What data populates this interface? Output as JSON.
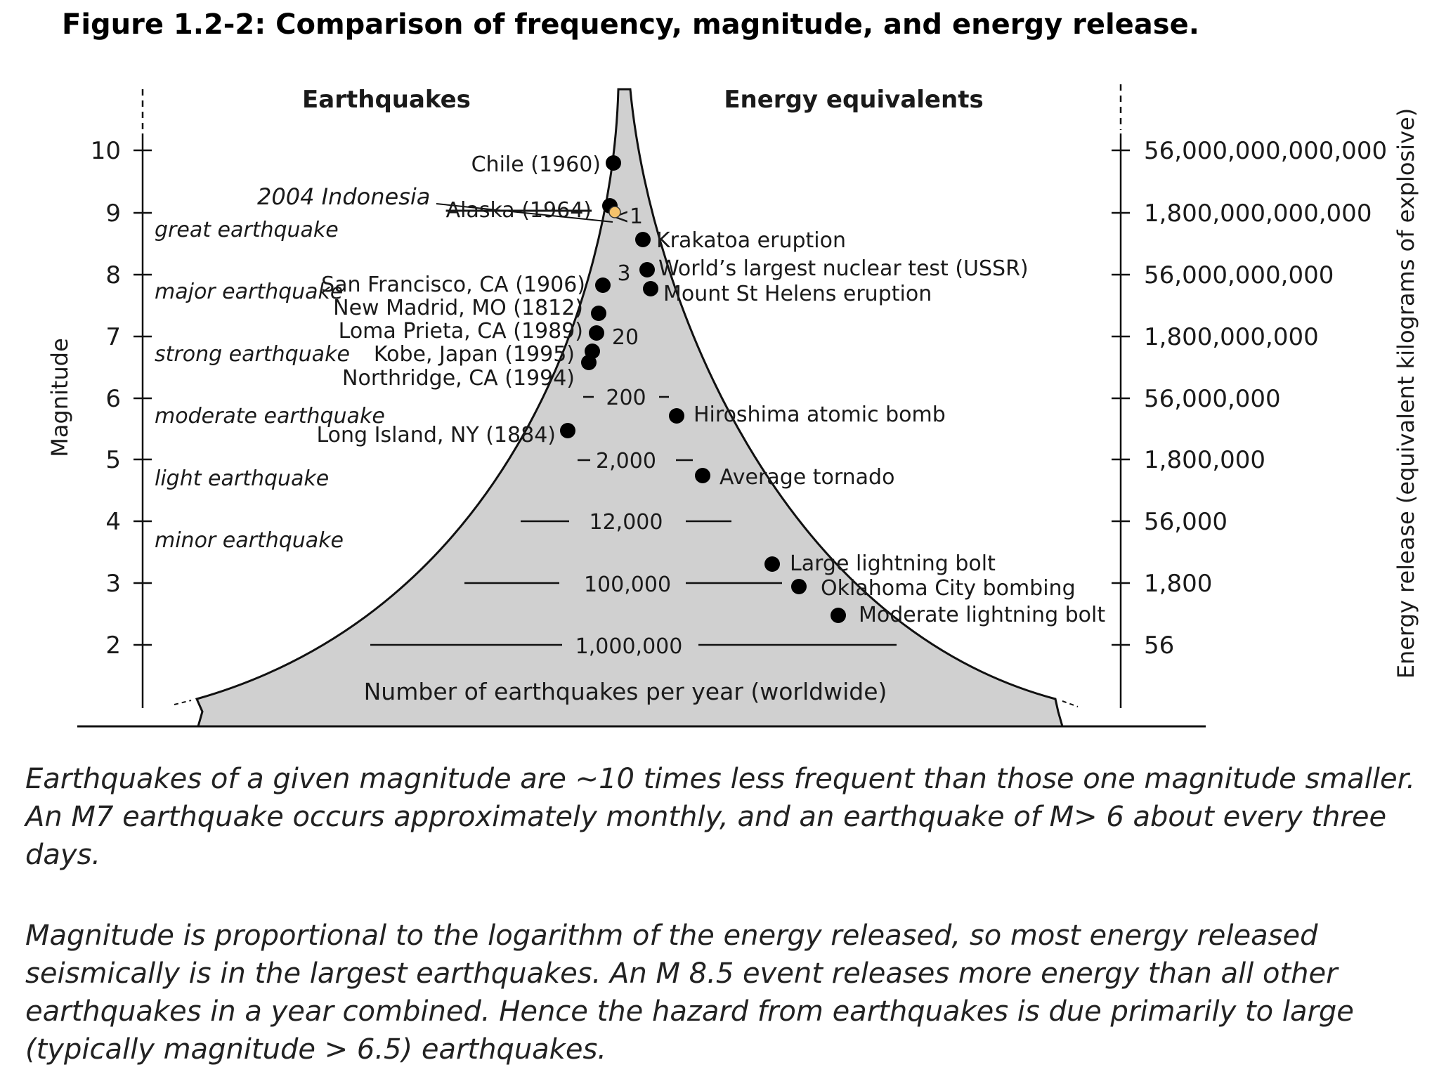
{
  "title": "Figure 1.2-2: Comparison of frequency, magnitude, and energy release.",
  "headers": {
    "left": "Earthquakes",
    "right": "Energy equivalents"
  },
  "axes": {
    "left_label": "Magnitude",
    "right_label": "Energy release (equivalent kilograms of explosive)",
    "bottom_label": "Number of earthquakes per year (worldwide)",
    "magnitude_ticks": [
      "10",
      "9",
      "8",
      "7",
      "6",
      "5",
      "4",
      "3",
      "2"
    ],
    "energy_ticks": [
      "56,000,000,000,000",
      "1,800,000,000,000",
      "56,000,000,000",
      "1,800,000,000",
      "56,000,000",
      "1,800,000",
      "56,000",
      "1,800",
      "56"
    ]
  },
  "categories": [
    "great earthquake",
    "major earthquake",
    "strong earthquake",
    "moderate earthquake",
    "light earthquake",
    "minor earthquake"
  ],
  "frequency_labels": [
    "<1",
    "3",
    "20",
    "200",
    "2,000",
    "12,000",
    "100,000",
    "1,000,000"
  ],
  "earthquakes": [
    {
      "name": "Chile (1960)",
      "magnitude": 9.5
    },
    {
      "name": "Alaska (1964)",
      "magnitude": 9.2
    },
    {
      "name": "San Francisco, CA (1906)",
      "magnitude": 7.8
    },
    {
      "name": "New Madrid, MO (1812)",
      "magnitude": 7.4
    },
    {
      "name": "Loma Prieta, CA (1989)",
      "magnitude": 7.0
    },
    {
      "name": "Kobe, Japan (1995)",
      "magnitude": 6.9
    },
    {
      "name": "Northridge, CA (1994)",
      "magnitude": 6.7
    },
    {
      "name": "Long Island, NY (1884)",
      "magnitude": 5.4
    }
  ],
  "highlight": {
    "name": "2004 Indonesia",
    "color": "#f5c26b"
  },
  "energy_equivalents": [
    "Krakatoa eruption",
    "World’s largest nuclear test (USSR)",
    "Mount St Helens eruption",
    "Hiroshima atomic bomb",
    "Average tornado",
    "Large lightning bolt",
    "Oklahoma City bombing",
    "Moderate lightning bolt"
  ],
  "colors": {
    "fill": "#d0d0d0",
    "stroke": "#111111",
    "highlight": "#f5c26b"
  },
  "captions": [
    "Earthquakes of a given magnitude are ~10 times less frequent than those one magnitude smaller.  An M7 earthquake occurs approximately monthly, and an earthquake of M> 6 about every three days.",
    "Magnitude is proportional to the logarithm of the energy released, so most  energy released seismically is in the largest earthquakes. An M 8.5 event releases more energy than all other earthquakes in a year combined. Hence the hazard from earthquakes is due primarily to large (typically magnitude > 6.5) earthquakes."
  ]
}
